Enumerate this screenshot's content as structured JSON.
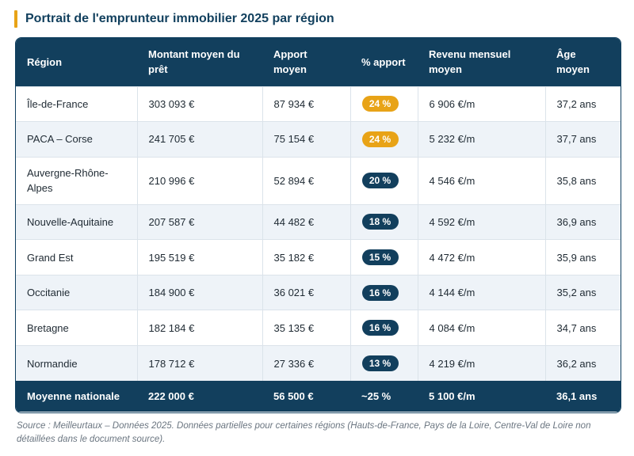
{
  "title": "Portrait de l'emprunteur immobilier 2025 par région",
  "colors": {
    "accent_high": "#e8a317",
    "accent_normal": "#123f5d",
    "header_bg": "#123f5d"
  },
  "headers": [
    "Région",
    "Montant moyen du prêt",
    "Apport moyen",
    "% apport",
    "Revenu mensuel moyen",
    "Âge moyen"
  ],
  "rows": [
    {
      "region": "Île-de-France",
      "montant": "303 093 €",
      "apport": "87 934 €",
      "pct": "24 %",
      "pct_highlight": true,
      "revenu": "6 906 €/m",
      "age": "37,2 ans"
    },
    {
      "region": "PACA – Corse",
      "montant": "241 705 €",
      "apport": "75 154 €",
      "pct": "24 %",
      "pct_highlight": true,
      "revenu": "5 232 €/m",
      "age": "37,7 ans"
    },
    {
      "region": "Auvergne-Rhône-Alpes",
      "montant": "210 996 €",
      "apport": "52 894 €",
      "pct": "20 %",
      "pct_highlight": false,
      "revenu": "4 546 €/m",
      "age": "35,8 ans"
    },
    {
      "region": "Nouvelle-Aquitaine",
      "montant": "207 587 €",
      "apport": "44 482 €",
      "pct": "18 %",
      "pct_highlight": false,
      "revenu": "4 592 €/m",
      "age": "36,9 ans"
    },
    {
      "region": "Grand Est",
      "montant": "195 519 €",
      "apport": "35 182 €",
      "pct": "15 %",
      "pct_highlight": false,
      "revenu": "4 472 €/m",
      "age": "35,9 ans"
    },
    {
      "region": "Occitanie",
      "montant": "184 900 €",
      "apport": "36 021 €",
      "pct": "16 %",
      "pct_highlight": false,
      "revenu": "4 144 €/m",
      "age": "35,2 ans"
    },
    {
      "region": "Bretagne",
      "montant": "182 184 €",
      "apport": "35 135 €",
      "pct": "16 %",
      "pct_highlight": false,
      "revenu": "4 084 €/m",
      "age": "34,7 ans"
    },
    {
      "region": "Normandie",
      "montant": "178 712 €",
      "apport": "27 336 €",
      "pct": "13 %",
      "pct_highlight": false,
      "revenu": "4 219 €/m",
      "age": "36,2 ans"
    }
  ],
  "footer": {
    "region": "Moyenne nationale",
    "montant": "222 000 €",
    "apport": "56 500 €",
    "pct": "~25 %",
    "revenu": "5 100 €/m",
    "age": "36,1 ans"
  },
  "source": "Source : Meilleurtaux – Données 2025. Données partielles pour certaines régions (Hauts-de-France, Pays de la Loire, Centre-Val de Loire non détaillées dans le document source)."
}
